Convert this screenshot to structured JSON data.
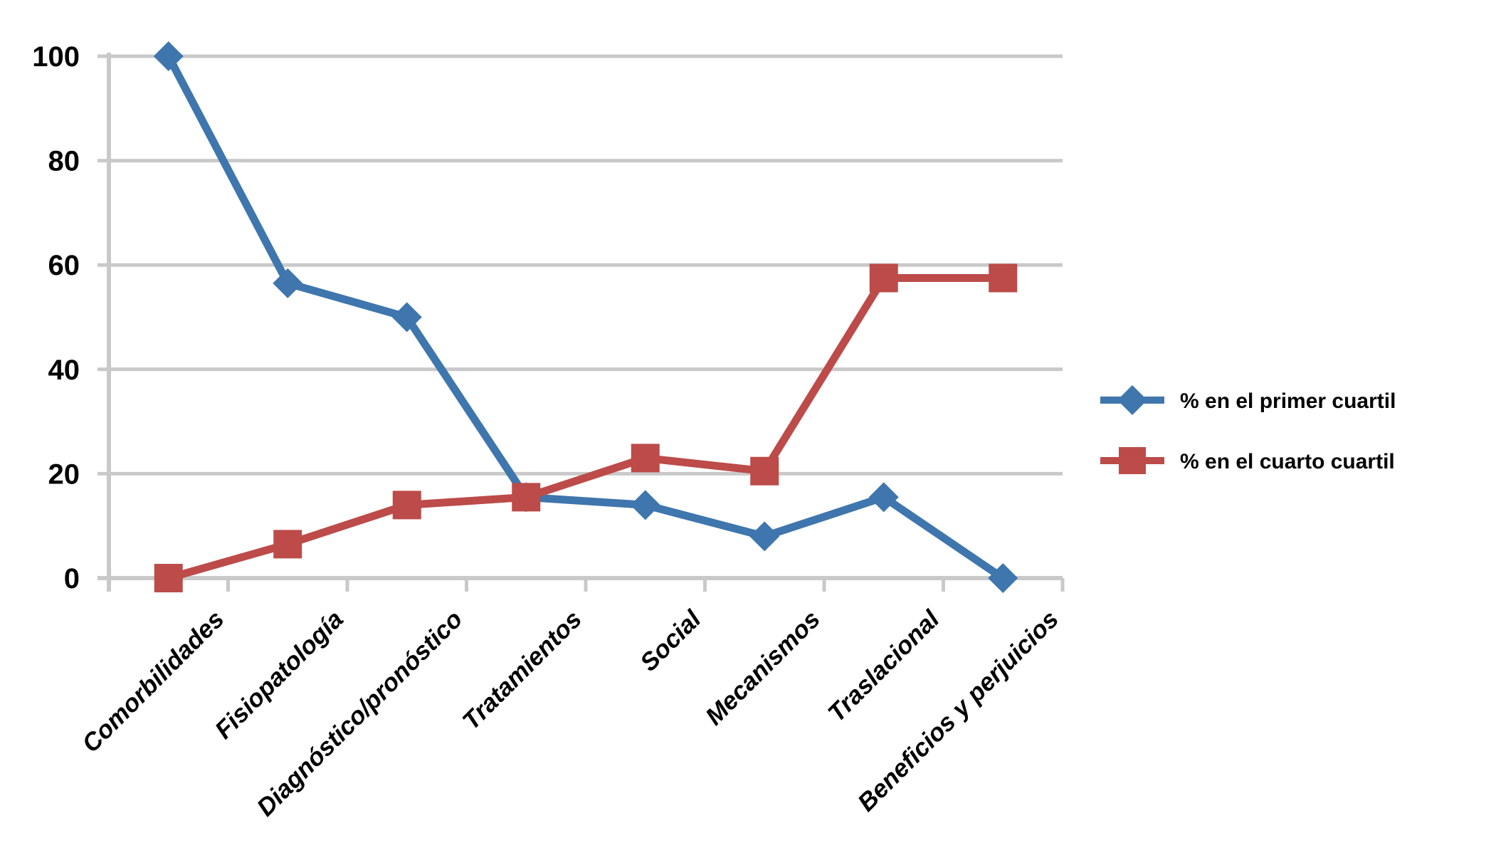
{
  "chart_data": {
    "type": "line",
    "title": "",
    "categories": [
      "Comorbilidades",
      "Fisiopatología",
      "Diagnóstico/pronóstico",
      "Tratamientos",
      "Social",
      "Mecanismos",
      "Traslacional",
      "Beneficios y perjuicios"
    ],
    "series": [
      {
        "name": "% en el primer cuartil",
        "marker": "diamond",
        "color": "#3E76AD",
        "values": [
          100,
          56.5,
          50,
          15.5,
          14,
          8,
          15.5,
          0
        ]
      },
      {
        "name": "% en el cuarto cuartil",
        "marker": "square",
        "color": "#BC4B49",
        "values": [
          0,
          6.5,
          14,
          15.5,
          23,
          20.5,
          57.5,
          57.5
        ]
      }
    ],
    "xlabel": "",
    "ylabel": "",
    "ylim": [
      0,
      100
    ],
    "yticks": [
      0,
      20,
      40,
      60,
      80,
      100
    ],
    "grid": true,
    "legend_position": "right",
    "colors": {
      "gridline": "#C9C9C9",
      "axis": "#C9C9C9",
      "text": "#000000",
      "background": "#FFFFFF"
    }
  }
}
